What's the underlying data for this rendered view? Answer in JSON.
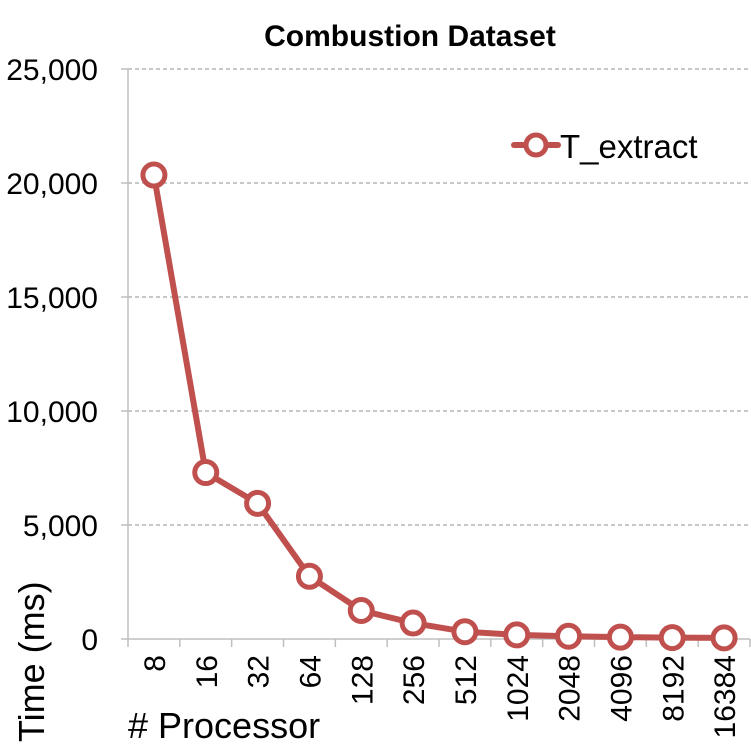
{
  "chart_data": {
    "type": "line",
    "title": "Combustion Dataset",
    "xlabel": "# Processor",
    "ylabel": "Time (ms)",
    "categories": [
      "8",
      "16",
      "32",
      "64",
      "128",
      "256",
      "512",
      "1024",
      "2048",
      "4096",
      "8192",
      "16384"
    ],
    "series": [
      {
        "name": "T_extract",
        "values": [
          20350,
          7300,
          5950,
          2750,
          1250,
          700,
          320,
          180,
          120,
          80,
          60,
          50
        ],
        "color": "#c0504d"
      }
    ],
    "ylim": [
      0,
      25000
    ],
    "yticks": [
      0,
      5000,
      10000,
      15000,
      20000,
      25000
    ],
    "ytick_labels": [
      "0",
      "5,000",
      "10,000",
      "15,000",
      "20,000",
      "25,000"
    ],
    "grid": "horizontal-dashed",
    "legend_position": "top-right",
    "colors": {
      "series": "#c0504d",
      "marker_fill": "#ffffff",
      "grid": "#a6a6a6",
      "axis": "#bfbfbf"
    }
  }
}
